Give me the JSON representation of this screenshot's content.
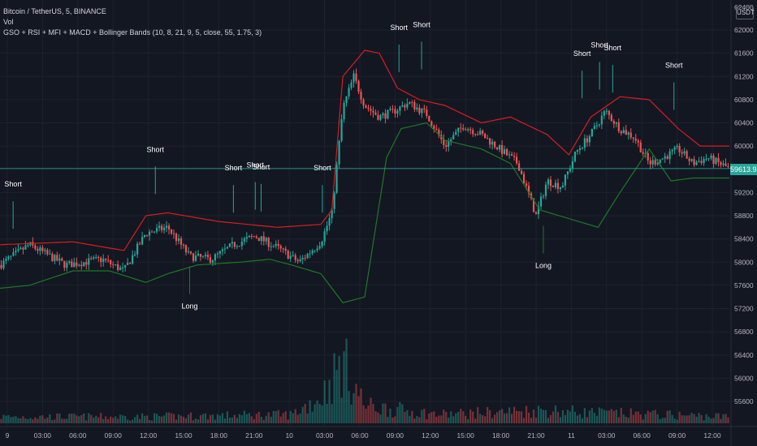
{
  "header": {
    "symbol_line": "Bitcoin / TetherUS, 5, BINANCE",
    "vol_label": "Vol",
    "indicator_line": "GSO + RSI + MFI + MACD + Bollinger Bands (10, 8, 21, 9, 5, close, 55, 1.75, 3)"
  },
  "quote_currency": "USDT",
  "last_price_label": "59613.95",
  "colors": {
    "background": "#131722",
    "grid": "#1e222d",
    "axis_text": "#b2b5be",
    "up_candle": "#26a69a",
    "down_candle": "#ef5350",
    "upper_band": "#d61e1e",
    "lower_band": "#1b7a24",
    "signal_text": "#ffffff",
    "price_line": "#26a69a"
  },
  "chart_data": {
    "type": "candlestick",
    "symbol": "Bitcoin / TetherUS",
    "interval": "5",
    "exchange": "BINANCE",
    "y_ticks": [
      55600,
      56000,
      56400,
      56800,
      57200,
      57600,
      58000,
      58400,
      58800,
      59200,
      59600,
      60000,
      60400,
      60800,
      61200,
      61600,
      62000
    ],
    "y_top_label": "62400",
    "x_ticks": [
      "9",
      "03:00",
      "06:00",
      "09:00",
      "12:00",
      "15:00",
      "18:00",
      "21:00",
      "10",
      "03:00",
      "06:00",
      "09:00",
      "12:00",
      "15:00",
      "18:00",
      "21:00",
      "11",
      "03:00",
      "06:00",
      "09:00",
      "12:00"
    ],
    "last_price": 59613.95,
    "price_keypoints": [
      [
        0,
        57950
      ],
      [
        0.04,
        58300
      ],
      [
        0.09,
        57950
      ],
      [
        0.14,
        58050
      ],
      [
        0.17,
        57850
      ],
      [
        0.2,
        58500
      ],
      [
        0.23,
        58600
      ],
      [
        0.26,
        58100
      ],
      [
        0.29,
        58050
      ],
      [
        0.32,
        58300
      ],
      [
        0.35,
        58450
      ],
      [
        0.38,
        58250
      ],
      [
        0.41,
        58000
      ],
      [
        0.44,
        58350
      ],
      [
        0.455,
        58850
      ],
      [
        0.47,
        60650
      ],
      [
        0.485,
        61200
      ],
      [
        0.5,
        60700
      ],
      [
        0.52,
        60500
      ],
      [
        0.54,
        60600
      ],
      [
        0.56,
        60750
      ],
      [
        0.585,
        60550
      ],
      [
        0.61,
        60000
      ],
      [
        0.635,
        60350
      ],
      [
        0.66,
        60200
      ],
      [
        0.685,
        59950
      ],
      [
        0.71,
        59700
      ],
      [
        0.735,
        58800
      ],
      [
        0.75,
        59400
      ],
      [
        0.77,
        59300
      ],
      [
        0.79,
        59900
      ],
      [
        0.81,
        60200
      ],
      [
        0.83,
        60600
      ],
      [
        0.85,
        60300
      ],
      [
        0.87,
        60150
      ],
      [
        0.89,
        59700
      ],
      [
        0.91,
        59800
      ],
      [
        0.93,
        59950
      ],
      [
        0.95,
        59700
      ],
      [
        0.97,
        59800
      ],
      [
        1.0,
        59614
      ]
    ],
    "upper_band_keypoints": [
      [
        0,
        58300
      ],
      [
        0.1,
        58350
      ],
      [
        0.17,
        58200
      ],
      [
        0.2,
        58800
      ],
      [
        0.23,
        58850
      ],
      [
        0.3,
        58700
      ],
      [
        0.38,
        58600
      ],
      [
        0.44,
        58650
      ],
      [
        0.455,
        58900
      ],
      [
        0.47,
        61200
      ],
      [
        0.5,
        61650
      ],
      [
        0.52,
        61600
      ],
      [
        0.545,
        61000
      ],
      [
        0.575,
        60800
      ],
      [
        0.61,
        60700
      ],
      [
        0.66,
        60400
      ],
      [
        0.7,
        60500
      ],
      [
        0.75,
        60200
      ],
      [
        0.78,
        59850
      ],
      [
        0.81,
        60500
      ],
      [
        0.85,
        60850
      ],
      [
        0.89,
        60800
      ],
      [
        0.93,
        60300
      ],
      [
        0.96,
        60000
      ],
      [
        1.0,
        60000
      ]
    ],
    "lower_band_keypoints": [
      [
        0,
        57550
      ],
      [
        0.04,
        57600
      ],
      [
        0.1,
        57850
      ],
      [
        0.15,
        57850
      ],
      [
        0.2,
        57650
      ],
      [
        0.23,
        57800
      ],
      [
        0.27,
        57950
      ],
      [
        0.33,
        58000
      ],
      [
        0.37,
        58050
      ],
      [
        0.4,
        57950
      ],
      [
        0.44,
        57800
      ],
      [
        0.47,
        57300
      ],
      [
        0.5,
        57400
      ],
      [
        0.51,
        58200
      ],
      [
        0.53,
        59800
      ],
      [
        0.55,
        60300
      ],
      [
        0.585,
        60400
      ],
      [
        0.61,
        60100
      ],
      [
        0.66,
        59950
      ],
      [
        0.7,
        59700
      ],
      [
        0.74,
        58900
      ],
      [
        0.78,
        58750
      ],
      [
        0.82,
        58600
      ],
      [
        0.85,
        59200
      ],
      [
        0.89,
        59950
      ],
      [
        0.92,
        59400
      ],
      [
        0.95,
        59450
      ],
      [
        1.0,
        59450
      ]
    ],
    "volume_keypoints": [
      [
        0,
        55550
      ],
      [
        0.2,
        55550
      ],
      [
        0.4,
        55600
      ],
      [
        0.44,
        56000
      ],
      [
        0.47,
        56800
      ],
      [
        0.5,
        55800
      ],
      [
        0.6,
        55600
      ],
      [
        0.75,
        55700
      ],
      [
        0.8,
        55650
      ],
      [
        1.0,
        55550
      ]
    ],
    "signals": [
      {
        "label": "Short",
        "t": 0.018,
        "price": 59300
      },
      {
        "label": "Short",
        "t": 0.213,
        "price": 59900
      },
      {
        "label": "Long",
        "t": 0.26,
        "price": 57200
      },
      {
        "label": "Short",
        "t": 0.32,
        "price": 59580
      },
      {
        "label": "Short",
        "t": 0.35,
        "price": 59630
      },
      {
        "label": "Short",
        "t": 0.358,
        "price": 59600
      },
      {
        "label": "Short",
        "t": 0.442,
        "price": 59580
      },
      {
        "label": "Short",
        "t": 0.547,
        "price": 62000
      },
      {
        "label": "Short",
        "t": 0.578,
        "price": 62050
      },
      {
        "label": "Long",
        "t": 0.745,
        "price": 57900
      },
      {
        "label": "Short",
        "t": 0.798,
        "price": 61550
      },
      {
        "label": "Short",
        "t": 0.822,
        "price": 61700
      },
      {
        "label": "Short",
        "t": 0.84,
        "price": 61650
      },
      {
        "label": "Short",
        "t": 0.924,
        "price": 61350
      }
    ]
  }
}
